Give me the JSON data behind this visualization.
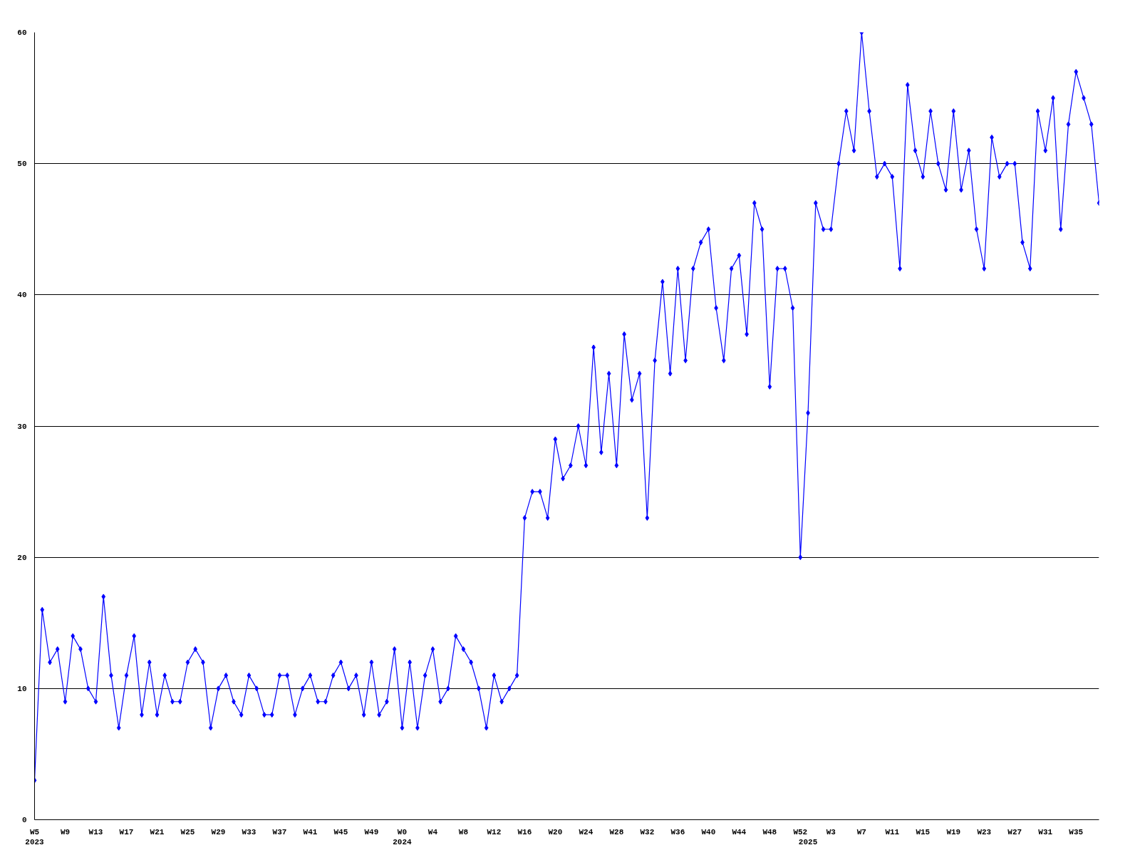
{
  "chart_data": {
    "type": "line",
    "categories": [
      "W5\n2023",
      null,
      null,
      null,
      "W9",
      null,
      null,
      null,
      "W13",
      null,
      null,
      null,
      "W17",
      null,
      null,
      null,
      "W21",
      null,
      null,
      null,
      "W25",
      null,
      null,
      null,
      "W29",
      null,
      null,
      null,
      "W33",
      null,
      null,
      null,
      "W37",
      null,
      null,
      null,
      "W41",
      null,
      null,
      null,
      "W45",
      null,
      null,
      null,
      "W49",
      null,
      null,
      null,
      "W0\n2024",
      null,
      null,
      null,
      "W4",
      null,
      null,
      null,
      "W8",
      null,
      null,
      null,
      "W12",
      null,
      null,
      null,
      "W16",
      null,
      null,
      null,
      "W20",
      null,
      null,
      null,
      "W24",
      null,
      null,
      null,
      "W28",
      null,
      null,
      null,
      "W32",
      null,
      null,
      null,
      "W36",
      null,
      null,
      null,
      "W40",
      null,
      null,
      null,
      "W44",
      null,
      null,
      null,
      "W48",
      null,
      null,
      null,
      "W52",
      "\n2025",
      null,
      null,
      "W3",
      null,
      null,
      null,
      "W7",
      null,
      null,
      null,
      "W11",
      null,
      null,
      null,
      "W15",
      null,
      null,
      null,
      "W19",
      null,
      null,
      null,
      "W23",
      null,
      null,
      null,
      "W27",
      null,
      null,
      null,
      "W31",
      null,
      null,
      null,
      "W35",
      null,
      null,
      null
    ],
    "series": [
      {
        "color": "#0000ff",
        "values": [
          3,
          16,
          12,
          13,
          9,
          14,
          13,
          10,
          9,
          17,
          11,
          7,
          11,
          14,
          8,
          12,
          8,
          11,
          9,
          9,
          12,
          13,
          12,
          7,
          10,
          11,
          9,
          8,
          11,
          10,
          8,
          8,
          11,
          11,
          8,
          10,
          11,
          9,
          9,
          11,
          12,
          10,
          11,
          8,
          12,
          8,
          9,
          13,
          7,
          12,
          7,
          11,
          13,
          9,
          10,
          14,
          13,
          12,
          10,
          7,
          11,
          9,
          10,
          11,
          23,
          25,
          25,
          23,
          29,
          26,
          27,
          30,
          27,
          36,
          28,
          34,
          27,
          37,
          32,
          34,
          23,
          35,
          41,
          34,
          42,
          35,
          42,
          44,
          45,
          39,
          35,
          42,
          43,
          37,
          47,
          45,
          33,
          42,
          42,
          39,
          20,
          31,
          47,
          45,
          45,
          50,
          54,
          51,
          60,
          54,
          49,
          50,
          49,
          42,
          56,
          51,
          49,
          54,
          50,
          48,
          54,
          48,
          51,
          45,
          42,
          52,
          49,
          50,
          50,
          44,
          42,
          54,
          51,
          55,
          45,
          53,
          57,
          55,
          53,
          47
        ]
      }
    ],
    "ylim": [
      0,
      60
    ],
    "yticks": [
      0,
      10,
      20,
      30,
      40,
      50,
      60
    ],
    "grid": "y",
    "marker": "diamond",
    "line_style": "solid"
  }
}
